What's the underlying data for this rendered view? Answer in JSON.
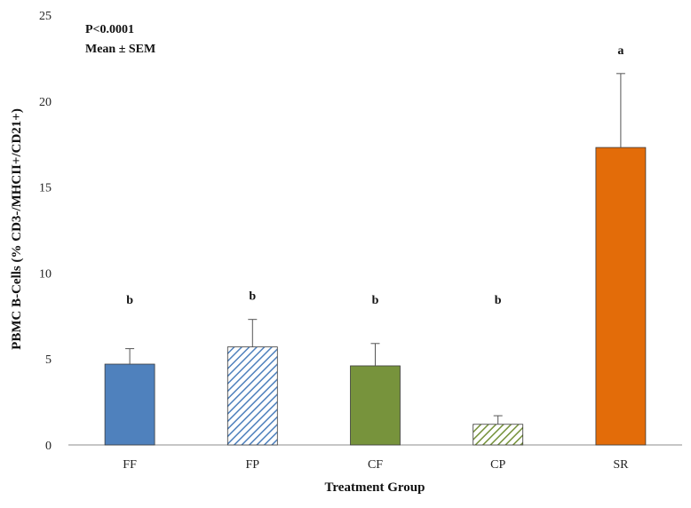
{
  "chart_data": {
    "type": "bar",
    "categories": [
      "FF",
      "FP",
      "CF",
      "CP",
      "SR"
    ],
    "values": [
      4.7,
      5.7,
      4.6,
      1.2,
      17.3
    ],
    "errors": [
      0.9,
      1.6,
      1.3,
      0.5,
      4.3
    ],
    "significance": [
      "b",
      "b",
      "b",
      "b",
      "a"
    ],
    "bar_colors": [
      "#4f81bd",
      "#4f81bd",
      "#77933c",
      "#77933c",
      "#e36c09"
    ],
    "bar_patterns": [
      "solid",
      "hatch",
      "solid",
      "hatch",
      "solid"
    ],
    "xlabel": "Treatment Group",
    "ylabel": "PBMC B-Cells (% CD3-/MHCII+/CD21+)",
    "ylim": [
      0,
      25
    ],
    "yticks": [
      0,
      5,
      10,
      15,
      20,
      25
    ],
    "annotations": [
      "P<0.0001",
      "Mean ± SEM"
    ]
  }
}
